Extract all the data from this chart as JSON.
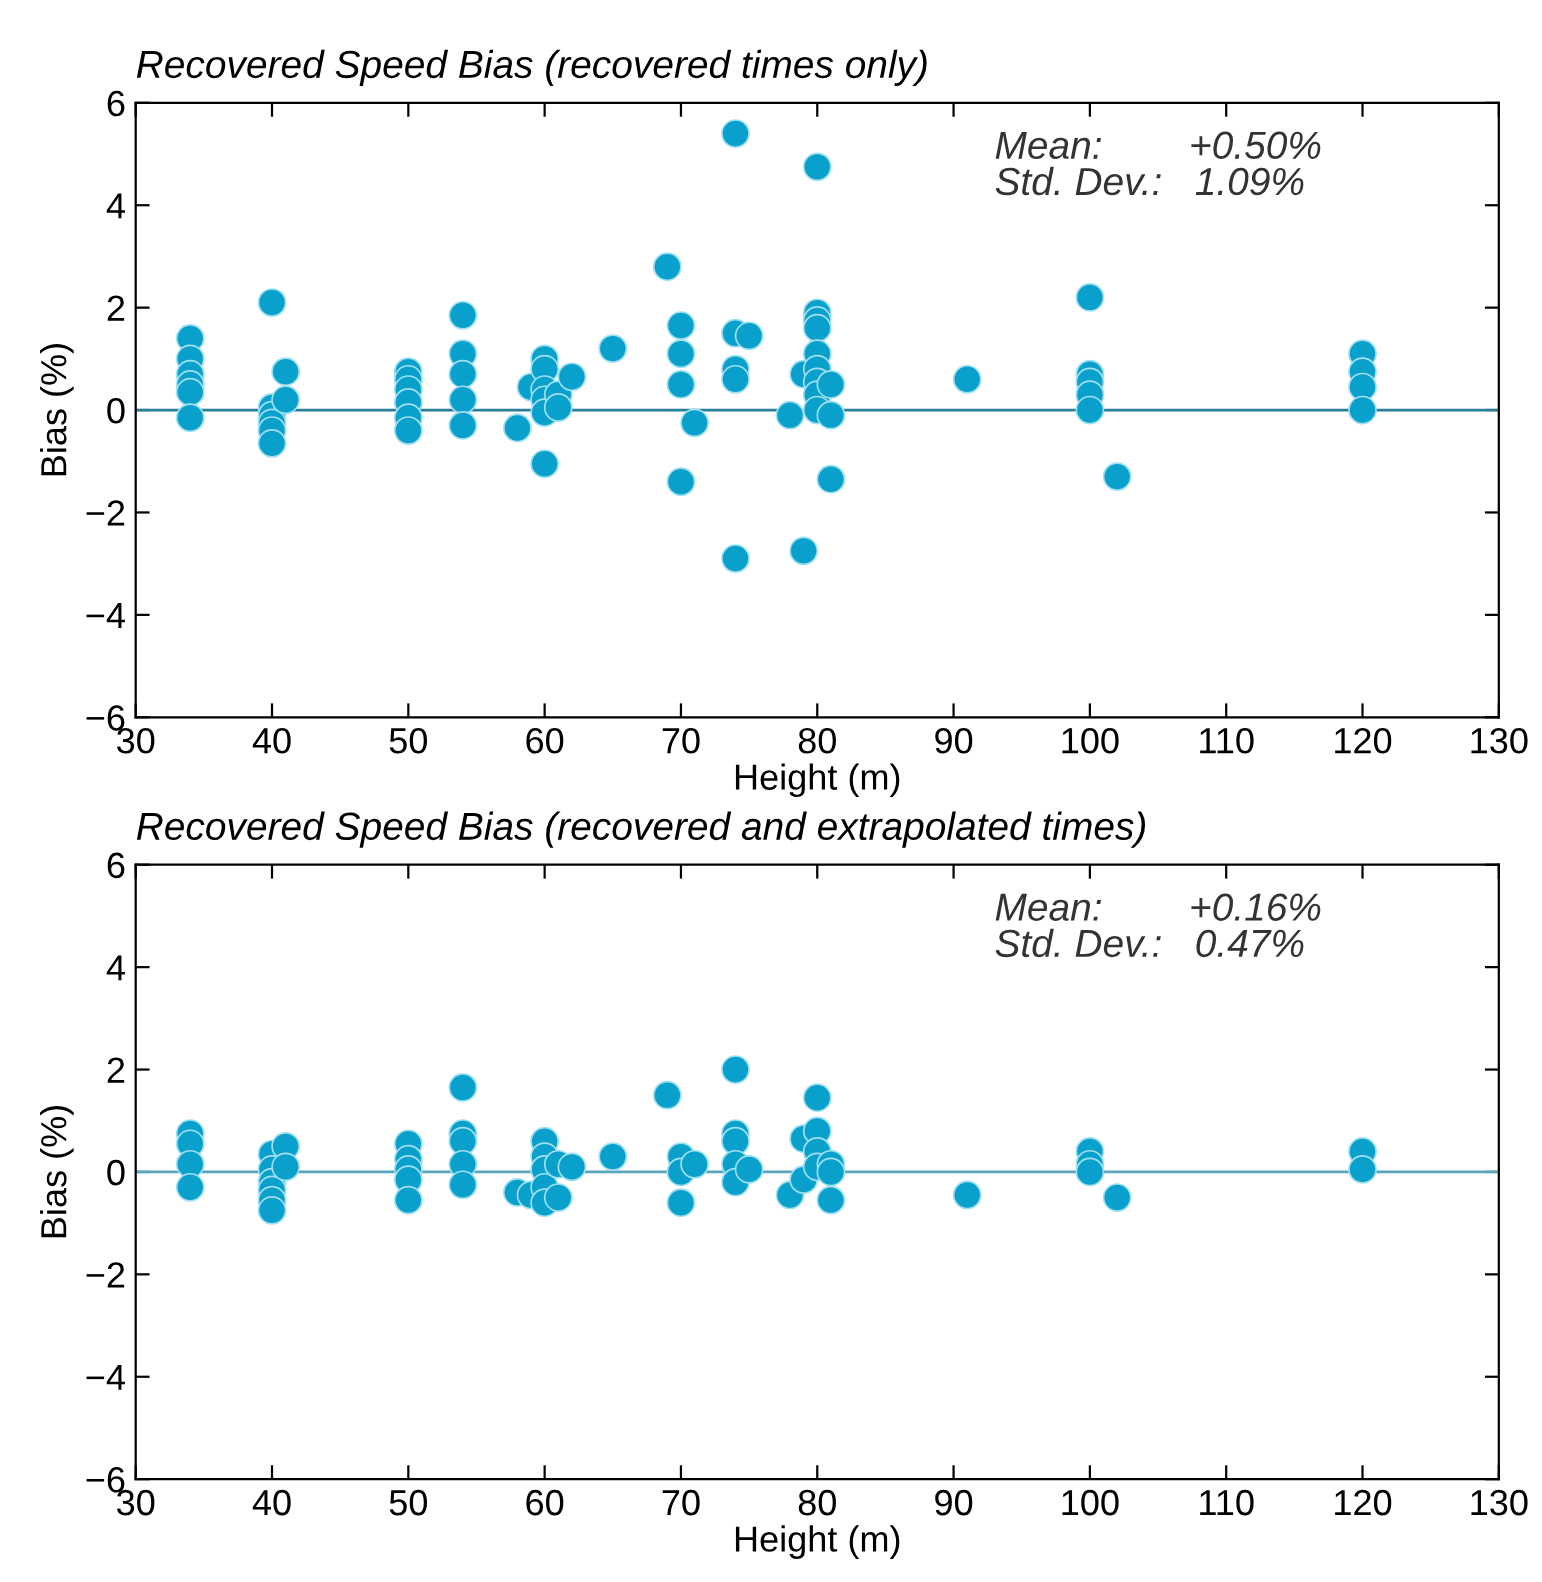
{
  "chart_data": [
    {
      "type": "scatter",
      "title": "Recovered Speed Bias (recovered times only)",
      "xlabel": "Height (m)",
      "ylabel": "Bias (%)",
      "annotations": [
        "Mean:        +0.50%\nStd. Dev.:   1.09%"
      ],
      "xlim": [
        30,
        130
      ],
      "xticks": [
        30,
        40,
        50,
        60,
        70,
        80,
        90,
        100,
        110,
        120,
        130
      ],
      "ylim": [
        -6,
        6
      ],
      "yticks": [
        {
          "value": -6,
          "label": "−6"
        },
        {
          "value": -4,
          "label": "−4"
        },
        {
          "value": -2,
          "label": "−2"
        },
        0,
        2,
        4,
        6
      ],
      "grid": false,
      "legend": false,
      "marker": "circle",
      "ref_lines": [
        {
          "axis": "y",
          "value": 0,
          "label": null,
          "color": "#2a7f96"
        }
      ],
      "series": [
        {
          "color": "#0aa0cc",
          "x": [
            34,
            34,
            34,
            34,
            34,
            34,
            40,
            40,
            40,
            40,
            40,
            40,
            41,
            41,
            50,
            50,
            50,
            50,
            50,
            50,
            54,
            54,
            54,
            54,
            54,
            58,
            59,
            60,
            60,
            60,
            60,
            60,
            60,
            61,
            61,
            62,
            65,
            69,
            70,
            70,
            70,
            70,
            71,
            74,
            74,
            74,
            74,
            74,
            75,
            78,
            79,
            79,
            80,
            80,
            80,
            80,
            80,
            80,
            80,
            80,
            80,
            81,
            81,
            81,
            91,
            100,
            100,
            100,
            100,
            100,
            102,
            120,
            120,
            120,
            120
          ],
          "values": [
            1.4,
            1.0,
            0.7,
            0.5,
            0.35,
            -0.15,
            2.1,
            0.05,
            -0.1,
            -0.25,
            -0.4,
            -0.65,
            0.75,
            0.2,
            0.75,
            0.6,
            0.4,
            0.15,
            -0.15,
            -0.4,
            1.85,
            1.1,
            0.7,
            0.2,
            -0.3,
            -0.35,
            0.45,
            1.0,
            0.8,
            0.4,
            0.2,
            -0.05,
            -1.05,
            0.3,
            0.05,
            0.65,
            1.2,
            2.8,
            1.65,
            1.1,
            0.5,
            -1.4,
            -0.25,
            5.4,
            1.5,
            0.8,
            0.6,
            -2.9,
            1.45,
            -0.1,
            0.7,
            -2.75,
            4.75,
            1.9,
            1.75,
            1.6,
            1.1,
            0.8,
            0.55,
            0.3,
            0.0,
            0.5,
            -0.1,
            -1.35,
            0.6,
            2.2,
            0.7,
            0.55,
            0.3,
            0.0,
            -1.3,
            1.1,
            0.75,
            0.45,
            0.0
          ]
        }
      ]
    },
    {
      "type": "scatter",
      "title": "Recovered Speed Bias (recovered and extrapolated times)",
      "xlabel": "Height (m)",
      "ylabel": "Bias (%)",
      "annotations": [
        "Mean:        +0.16%\nStd. Dev.:   0.47%"
      ],
      "xlim": [
        30,
        130
      ],
      "xticks": [
        30,
        40,
        50,
        60,
        70,
        80,
        90,
        100,
        110,
        120,
        130
      ],
      "ylim": [
        -6,
        6
      ],
      "yticks": [
        {
          "value": -6,
          "label": "−6"
        },
        {
          "value": -4,
          "label": "−4"
        },
        {
          "value": -2,
          "label": "−2"
        },
        0,
        2,
        4,
        6
      ],
      "grid": false,
      "legend": false,
      "marker": "circle",
      "ref_lines": [
        {
          "axis": "y",
          "value": 0,
          "label": null,
          "color": "#5aa5bb"
        }
      ],
      "series": [
        {
          "color": "#0aa0cc",
          "x": [
            34,
            34,
            34,
            34,
            40,
            40,
            40,
            40,
            40,
            40,
            41,
            41,
            50,
            50,
            50,
            50,
            50,
            54,
            54,
            54,
            54,
            54,
            58,
            59,
            60,
            60,
            60,
            60,
            60,
            61,
            61,
            62,
            65,
            69,
            70,
            70,
            70,
            71,
            74,
            74,
            74,
            74,
            74,
            75,
            78,
            79,
            79,
            80,
            80,
            80,
            80,
            81,
            81,
            81,
            91,
            100,
            100,
            100,
            102,
            120,
            120
          ],
          "values": [
            0.75,
            0.55,
            0.15,
            -0.3,
            0.35,
            0.05,
            -0.2,
            -0.35,
            -0.55,
            -0.75,
            0.5,
            0.1,
            0.55,
            0.25,
            0.05,
            -0.15,
            -0.55,
            1.65,
            0.75,
            0.6,
            0.15,
            -0.25,
            -0.4,
            -0.45,
            0.6,
            0.3,
            0.05,
            -0.3,
            -0.6,
            0.15,
            -0.5,
            0.1,
            0.3,
            1.5,
            0.3,
            0.0,
            -0.6,
            0.15,
            2.0,
            0.75,
            0.6,
            0.15,
            -0.2,
            0.05,
            -0.45,
            0.65,
            -0.15,
            1.45,
            0.8,
            0.4,
            0.1,
            0.15,
            0.0,
            -0.55,
            -0.45,
            0.4,
            0.15,
            0.0,
            -0.5,
            0.4,
            0.05
          ]
        }
      ]
    }
  ]
}
